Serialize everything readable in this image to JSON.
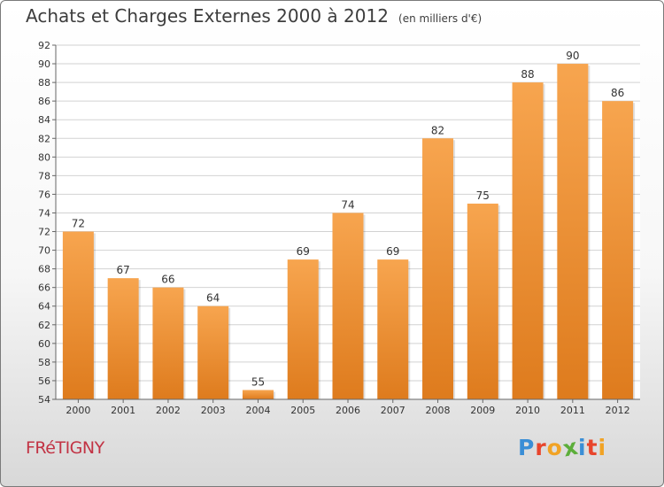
{
  "title": "Achats et Charges Externes 2000 à 2012",
  "unit": "(en milliers d'€)",
  "commune": "FRéTIGNY",
  "logo": {
    "text": "Proxiti",
    "letters": [
      {
        "ch": "P",
        "color": "#3a8ed6"
      },
      {
        "ch": "r",
        "color": "#e8452c"
      },
      {
        "ch": "o",
        "color": "#f1a325"
      },
      {
        "ch": "x",
        "color": "#5cae3a"
      },
      {
        "ch": "i",
        "color": "#3a8ed6"
      },
      {
        "ch": "t",
        "color": "#e8452c"
      },
      {
        "ch": "i",
        "color": "#f1a325"
      }
    ]
  },
  "colors": {
    "bar_light": "#f7a54f",
    "bar_dark": "#de7b1d",
    "grid": "#d2d2d2",
    "axis": "#666666",
    "text": "#333333"
  },
  "chart_data": {
    "type": "bar",
    "categories": [
      "2000",
      "2001",
      "2002",
      "2003",
      "2004",
      "2005",
      "2006",
      "2007",
      "2008",
      "2009",
      "2010",
      "2011",
      "2012"
    ],
    "values": [
      72,
      67,
      66,
      64,
      55,
      69,
      74,
      69,
      82,
      75,
      88,
      90,
      86
    ],
    "ylim": [
      54,
      92
    ],
    "ytick_step": 2,
    "grid": true,
    "legend": "none"
  }
}
